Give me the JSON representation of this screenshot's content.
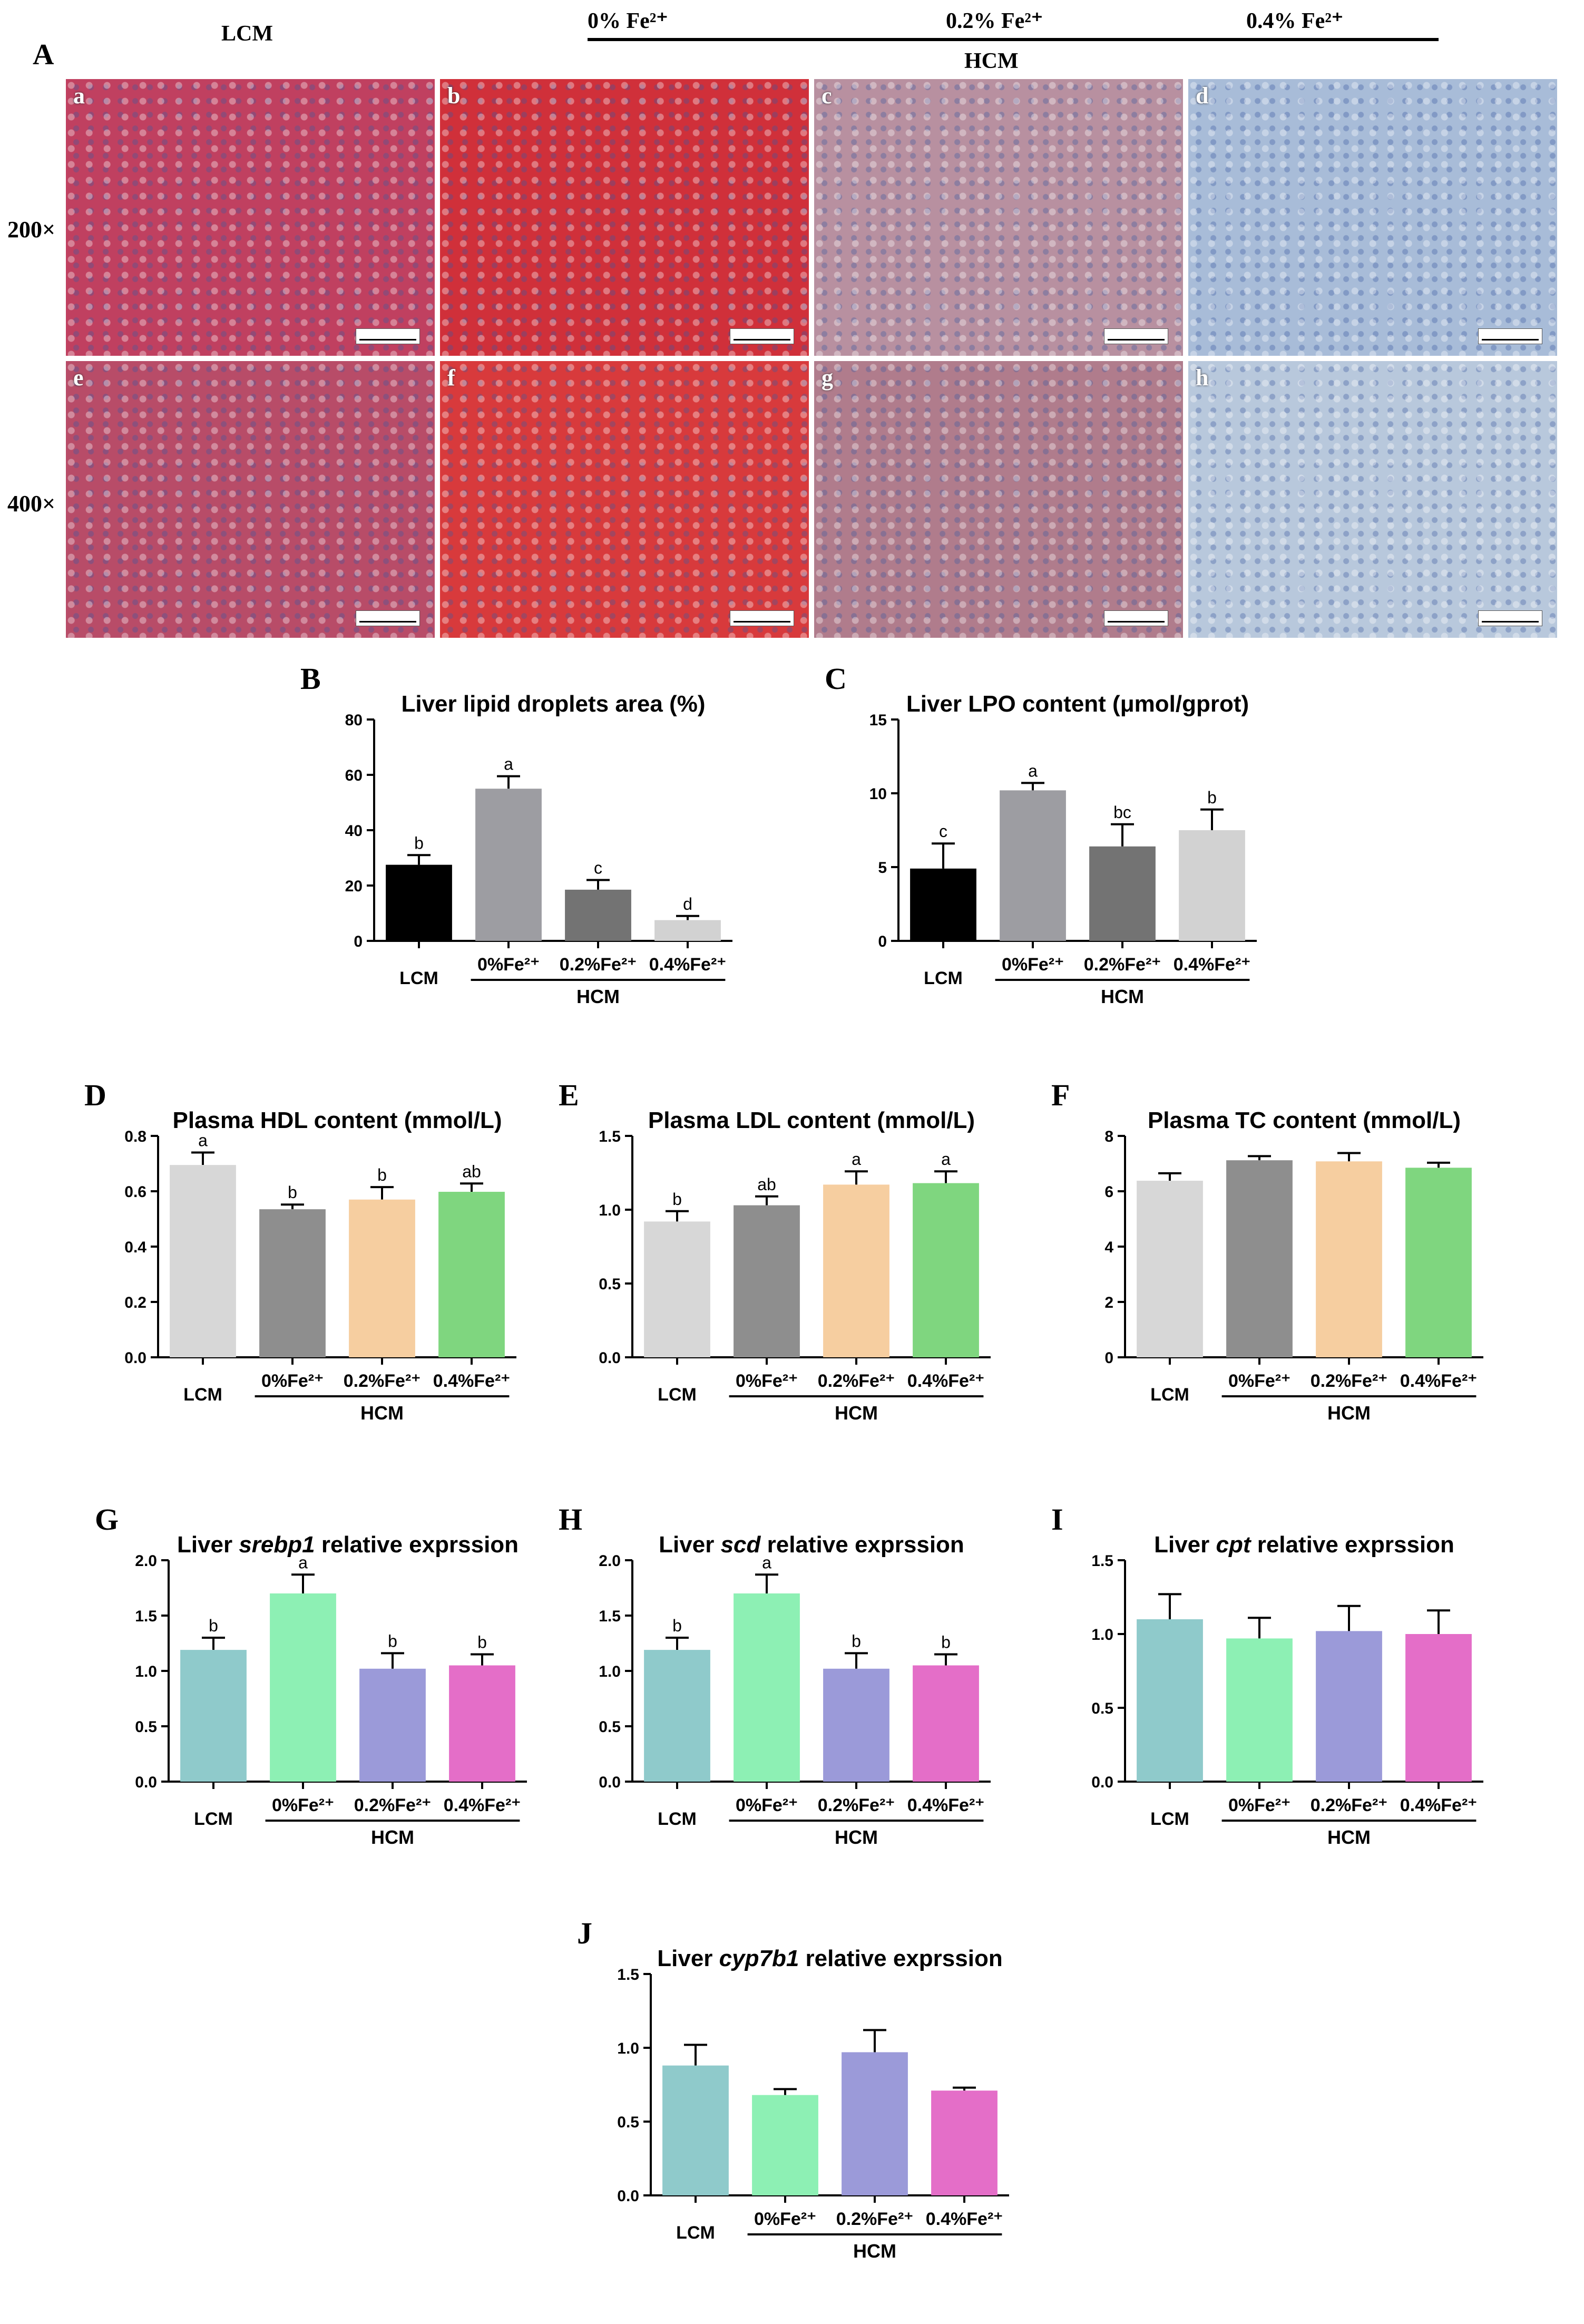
{
  "panelA": {
    "letter": "A",
    "lcm_label": "LCM",
    "hcm_label": "HCM",
    "group_labels": [
      "0% Fe²⁺",
      "0.2% Fe²⁺",
      "0.4% Fe²⁺"
    ],
    "mag_labels": [
      "200×",
      "400×"
    ],
    "subpanels": [
      "a",
      "b",
      "c",
      "d",
      "e",
      "f",
      "g",
      "h"
    ],
    "colors": [
      "#c04060",
      "#d0303a",
      "#b890a0",
      "#a8bcd8",
      "#b84c68",
      "#d83a3c",
      "#b07c8c",
      "#b8c8dc"
    ]
  },
  "chart_data": [
    {
      "id": "B",
      "type": "bar",
      "title": "Liver lipid droplets area (%)",
      "categories": [
        "LCM",
        "0%Fe²⁺",
        "0.2%Fe²⁺",
        "0.4%Fe²⁺"
      ],
      "group_label": "HCM",
      "values": [
        27.5,
        55,
        18.5,
        7.5
      ],
      "errors": [
        3.5,
        4.5,
        3.5,
        1.5
      ],
      "letters": [
        "b",
        "a",
        "c",
        "d"
      ],
      "colors": [
        "#000000",
        "#9d9da2",
        "#737373",
        "#d2d2d2"
      ],
      "ylim": [
        0,
        80
      ],
      "yticks": [
        0,
        20,
        40,
        60,
        80
      ],
      "ytick_labels": [
        "0",
        "20",
        "40",
        "60",
        "80"
      ]
    },
    {
      "id": "C",
      "type": "bar",
      "title": "Liver LPO content (μmol/gprot)",
      "categories": [
        "LCM",
        "0%Fe²⁺",
        "0.2%Fe²⁺",
        "0.4%Fe²⁺"
      ],
      "group_label": "HCM",
      "values": [
        4.9,
        10.2,
        6.4,
        7.5
      ],
      "errors": [
        1.7,
        0.5,
        1.5,
        1.4
      ],
      "letters": [
        "c",
        "a",
        "bc",
        "b"
      ],
      "colors": [
        "#000000",
        "#9d9da2",
        "#737373",
        "#d2d2d2"
      ],
      "ylim": [
        0,
        15
      ],
      "yticks": [
        0,
        5,
        10,
        15
      ],
      "ytick_labels": [
        "0",
        "5",
        "10",
        "15"
      ]
    },
    {
      "id": "D",
      "type": "bar",
      "title": "Plasma HDL content (mmol/L)",
      "categories": [
        "LCM",
        "0%Fe²⁺",
        "0.2%Fe²⁺",
        "0.4%Fe²⁺"
      ],
      "group_label": "HCM",
      "values": [
        0.695,
        0.535,
        0.57,
        0.598
      ],
      "errors": [
        0.045,
        0.017,
        0.045,
        0.03
      ],
      "letters": [
        "a",
        "b",
        "b",
        "ab"
      ],
      "colors": [
        "#d7d7d7",
        "#8e8e8e",
        "#f6cea0",
        "#7fd67f"
      ],
      "ylim": [
        0,
        0.8
      ],
      "yticks": [
        0,
        0.2,
        0.4,
        0.6,
        0.8
      ],
      "ytick_labels": [
        "0.0",
        "0.2",
        "0.4",
        "0.6",
        "0.8"
      ]
    },
    {
      "id": "E",
      "type": "bar",
      "title": "Plasma LDL content (mmol/L)",
      "categories": [
        "LCM",
        "0%Fe²⁺",
        "0.2%Fe²⁺",
        "0.4%Fe²⁺"
      ],
      "group_label": "HCM",
      "values": [
        0.92,
        1.03,
        1.17,
        1.18
      ],
      "errors": [
        0.07,
        0.06,
        0.09,
        0.08
      ],
      "letters": [
        "b",
        "ab",
        "a",
        "a"
      ],
      "colors": [
        "#d7d7d7",
        "#8e8e8e",
        "#f6cea0",
        "#7fd67f"
      ],
      "ylim": [
        0,
        1.5
      ],
      "yticks": [
        0,
        0.5,
        1.0,
        1.5
      ],
      "ytick_labels": [
        "0.0",
        "0.5",
        "1.0",
        "1.5"
      ]
    },
    {
      "id": "F",
      "type": "bar",
      "title": "Plasma TC content (mmol/L)",
      "categories": [
        "LCM",
        "0%Fe²⁺",
        "0.2%Fe²⁺",
        "0.4%Fe²⁺"
      ],
      "group_label": "HCM",
      "values": [
        6.38,
        7.12,
        7.08,
        6.85
      ],
      "errors": [
        0.27,
        0.15,
        0.3,
        0.18
      ],
      "letters": [
        "",
        "",
        "",
        ""
      ],
      "colors": [
        "#d7d7d7",
        "#8e8e8e",
        "#f6cea0",
        "#7fd67f"
      ],
      "ylim": [
        0,
        8
      ],
      "yticks": [
        0,
        2,
        4,
        6,
        8
      ],
      "ytick_labels": [
        "0",
        "2",
        "4",
        "6",
        "8"
      ]
    },
    {
      "id": "G",
      "type": "bar",
      "title_parts": [
        "Liver ",
        "srebp1",
        " relative exprssion"
      ],
      "categories": [
        "LCM",
        "0%Fe²⁺",
        "0.2%Fe²⁺",
        "0.4%Fe²⁺"
      ],
      "group_label": "HCM",
      "values": [
        1.19,
        1.7,
        1.02,
        1.05
      ],
      "errors": [
        0.11,
        0.17,
        0.14,
        0.1
      ],
      "letters": [
        "b",
        "a",
        "b",
        "b"
      ],
      "colors": [
        "#8fcacb",
        "#8df0b4",
        "#9b9ad9",
        "#e46ec8"
      ],
      "ylim": [
        0,
        2.0
      ],
      "yticks": [
        0,
        0.5,
        1.0,
        1.5,
        2.0
      ],
      "ytick_labels": [
        "0.0",
        "0.5",
        "1.0",
        "1.5",
        "2.0"
      ]
    },
    {
      "id": "H",
      "type": "bar",
      "title_parts": [
        "Liver ",
        "scd",
        " relative exprssion"
      ],
      "categories": [
        "LCM",
        "0%Fe²⁺",
        "0.2%Fe²⁺",
        "0.4%Fe²⁺"
      ],
      "group_label": "HCM",
      "values": [
        1.19,
        1.7,
        1.02,
        1.05
      ],
      "errors": [
        0.11,
        0.17,
        0.14,
        0.1
      ],
      "letters": [
        "b",
        "a",
        "b",
        "b"
      ],
      "colors": [
        "#8fcacb",
        "#8df0b4",
        "#9b9ad9",
        "#e46ec8"
      ],
      "ylim": [
        0,
        2.0
      ],
      "yticks": [
        0,
        0.5,
        1.0,
        1.5,
        2.0
      ],
      "ytick_labels": [
        "0.0",
        "0.5",
        "1.0",
        "1.5",
        "2.0"
      ]
    },
    {
      "id": "I",
      "type": "bar",
      "title_parts": [
        "Liver ",
        "cpt",
        " relative exprssion"
      ],
      "categories": [
        "LCM",
        "0%Fe²⁺",
        "0.2%Fe²⁺",
        "0.4%Fe²⁺"
      ],
      "group_label": "HCM",
      "values": [
        1.1,
        0.97,
        1.02,
        1.0
      ],
      "errors": [
        0.17,
        0.14,
        0.17,
        0.16
      ],
      "letters": [
        "",
        "",
        "",
        ""
      ],
      "colors": [
        "#8fcacb",
        "#8df0b4",
        "#9b9ad9",
        "#e46ec8"
      ],
      "ylim": [
        0,
        1.5
      ],
      "yticks": [
        0,
        0.5,
        1.0,
        1.5
      ],
      "ytick_labels": [
        "0.0",
        "0.5",
        "1.0",
        "1.5"
      ]
    },
    {
      "id": "J",
      "type": "bar",
      "title_parts": [
        "Liver ",
        "cyp7b1",
        " relative exprssion"
      ],
      "categories": [
        "LCM",
        "0%Fe²⁺",
        "0.2%Fe²⁺",
        "0.4%Fe²⁺"
      ],
      "group_label": "HCM",
      "values": [
        0.88,
        0.68,
        0.97,
        0.71
      ],
      "errors": [
        0.14,
        0.04,
        0.15,
        0.02
      ],
      "letters": [
        "",
        "",
        "",
        ""
      ],
      "colors": [
        "#8fcacb",
        "#8df0b4",
        "#9b9ad9",
        "#e46ec8"
      ],
      "ylim": [
        0,
        1.5
      ],
      "yticks": [
        0,
        0.5,
        1.0,
        1.5
      ],
      "ytick_labels": [
        "0.0",
        "0.5",
        "1.0",
        "1.5"
      ]
    }
  ]
}
